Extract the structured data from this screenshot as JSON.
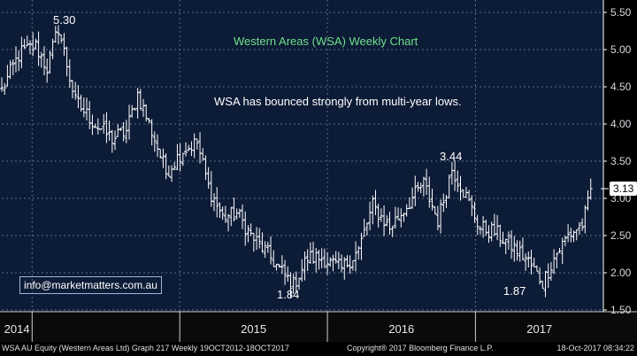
{
  "chart_data": {
    "type": "ohlc",
    "title": "Western Areas (WSA) Weekly Chart",
    "annotation": "WSA has bounced strongly from multi-year lows.",
    "contact": "info@marketmatters.com.au",
    "x_ticks": [
      "2014",
      "2015",
      "2016",
      "2017"
    ],
    "x_range": [
      "2013-10-18",
      "2017-10-18"
    ],
    "y_ticks": [
      "1.50",
      "2.00",
      "2.50",
      "3.00",
      "3.50",
      "4.00",
      "4.50",
      "5.00",
      "5.50"
    ],
    "y_range": [
      1.5,
      5.5
    ],
    "last_price": "3.13",
    "peak_labels": {
      "high_2014": "5.30",
      "low_2015": "1.84",
      "high_2016": "3.44",
      "low_2017": "1.87"
    },
    "price_path": [
      {
        "date": "2013-10-18",
        "close": 4.45
      },
      {
        "date": "2013-12-01",
        "close": 4.95
      },
      {
        "date": "2014-01-10",
        "close": 5.05
      },
      {
        "date": "2014-02-07",
        "close": 4.75
      },
      {
        "date": "2014-03-07",
        "close": 5.3
      },
      {
        "date": "2014-04-18",
        "close": 4.3
      },
      {
        "date": "2014-06-06",
        "close": 4.0
      },
      {
        "date": "2014-07-18",
        "close": 3.8
      },
      {
        "date": "2014-08-22",
        "close": 3.9
      },
      {
        "date": "2014-09-19",
        "close": 4.4
      },
      {
        "date": "2014-10-31",
        "close": 3.8
      },
      {
        "date": "2014-11-28",
        "close": 3.35
      },
      {
        "date": "2015-01-09",
        "close": 3.65
      },
      {
        "date": "2015-02-13",
        "close": 3.75
      },
      {
        "date": "2015-03-13",
        "close": 3.15
      },
      {
        "date": "2015-04-17",
        "close": 2.75
      },
      {
        "date": "2015-05-22",
        "close": 2.8
      },
      {
        "date": "2015-06-26",
        "close": 2.5
      },
      {
        "date": "2015-07-31",
        "close": 2.3
      },
      {
        "date": "2015-09-11",
        "close": 2.0
      },
      {
        "date": "2015-10-09",
        "close": 1.84
      },
      {
        "date": "2015-11-13",
        "close": 2.2
      },
      {
        "date": "2015-12-18",
        "close": 2.2
      },
      {
        "date": "2016-02-05",
        "close": 2.05
      },
      {
        "date": "2016-03-18",
        "close": 2.3
      },
      {
        "date": "2016-04-22",
        "close": 2.9
      },
      {
        "date": "2016-06-03",
        "close": 2.6
      },
      {
        "date": "2016-07-15",
        "close": 2.9
      },
      {
        "date": "2016-08-26",
        "close": 3.2
      },
      {
        "date": "2016-09-30",
        "close": 2.7
      },
      {
        "date": "2016-11-04",
        "close": 3.4
      },
      {
        "date": "2016-12-02",
        "close": 3.1
      },
      {
        "date": "2017-01-13",
        "close": 2.6
      },
      {
        "date": "2017-02-17",
        "close": 2.55
      },
      {
        "date": "2017-03-24",
        "close": 2.4
      },
      {
        "date": "2017-05-05",
        "close": 2.2
      },
      {
        "date": "2017-06-16",
        "close": 1.87
      },
      {
        "date": "2017-07-14",
        "close": 2.2
      },
      {
        "date": "2017-08-18",
        "close": 2.5
      },
      {
        "date": "2017-09-22",
        "close": 2.65
      },
      {
        "date": "2017-10-18",
        "close": 3.13
      }
    ],
    "grid": true,
    "legend": "none"
  },
  "footer": {
    "left": "WSA AU Equity (Western Areas Ltd) Graph 217  Weekly 19OCT2012-18OCT2017",
    "middle": "Copyright® 2017 Bloomberg Finance L.P.",
    "right": "18-Oct-2017 08:34:22"
  },
  "colors": {
    "background": "#0c1b36",
    "bars": "#ffffff",
    "title": "#6fe08a",
    "grid": "#5e6b86"
  }
}
